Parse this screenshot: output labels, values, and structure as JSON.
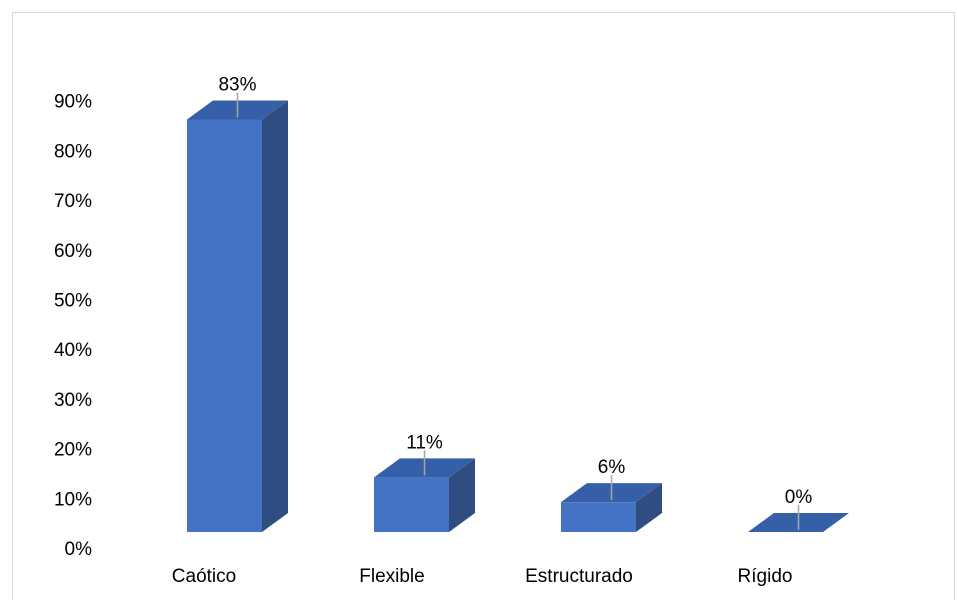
{
  "chart_data": {
    "type": "bar",
    "style": "3d-column",
    "categories": [
      "Caótico",
      "Flexible",
      "Estructurado",
      "Rígido"
    ],
    "values": [
      83,
      11,
      6,
      0
    ],
    "data_labels": [
      "83%",
      "11%",
      "6%",
      "0%"
    ],
    "yticks": [
      "0%",
      "10%",
      "20%",
      "30%",
      "40%",
      "50%",
      "60%",
      "70%",
      "80%",
      "90%"
    ],
    "ylim": [
      0,
      90
    ],
    "grid": false,
    "legend": "none",
    "colors": {
      "front": "#4472c4",
      "top": "#3560a8",
      "side": "#2f4d80",
      "leader": "#a6a6a6"
    }
  }
}
